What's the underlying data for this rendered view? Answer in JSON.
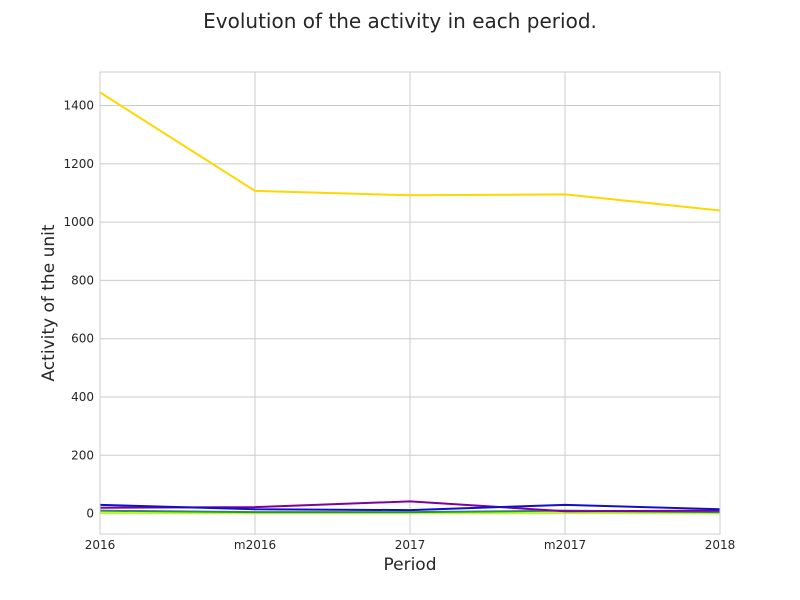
{
  "chart_data": {
    "type": "line",
    "title": "Evolution of the activity in each period.",
    "xlabel": "Period",
    "ylabel": "Activity of the unit",
    "categories": [
      "2016",
      "m2016",
      "2017",
      "m2017",
      "2018"
    ],
    "ylim": [
      -70,
      1515
    ],
    "yticks": [
      0,
      200,
      400,
      600,
      800,
      1000,
      1200,
      1400
    ],
    "grid": true,
    "legend": "none",
    "series": [
      {
        "color": "#FFD700",
        "values": [
          1445,
          1107,
          1092,
          1095,
          1040
        ]
      },
      {
        "color": "#1010C8",
        "values": [
          30,
          15,
          12,
          30,
          15
        ]
      },
      {
        "color": "#7F00A0",
        "values": [
          20,
          22,
          42,
          8,
          10
        ]
      },
      {
        "color": "#2E8B57",
        "values": [
          10,
          5,
          5,
          10,
          5
        ]
      },
      {
        "color": "#ADFF2F",
        "values": [
          3,
          2,
          2,
          3,
          2
        ]
      },
      {
        "color": "#FFD700",
        "values": [
          2,
          1,
          1,
          2,
          1
        ]
      }
    ],
    "colors": {
      "grid": "#CCCCCC",
      "spine": "#CCCCCC",
      "text": "#262626"
    }
  }
}
